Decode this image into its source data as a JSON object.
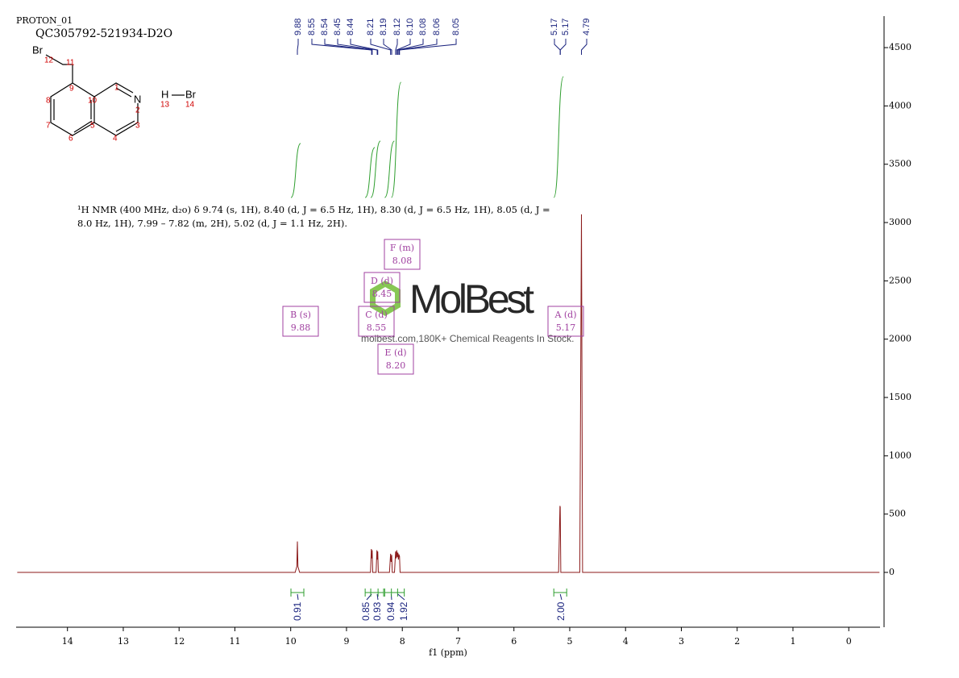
{
  "header": {
    "run": "PROTON_01",
    "sample": "QC305792-521934-D2O"
  },
  "structure_labels": {
    "br_a": "Br",
    "n12": "12",
    "n11": "11",
    "n9": "9",
    "n1": "1",
    "n8": "8",
    "n10": "10",
    "n_atom": "N",
    "n2": "2",
    "n7": "7",
    "n3": "3",
    "n6": "6",
    "n5": "5",
    "n4": "4",
    "h": "H",
    "br_b": "Br",
    "n13": "13",
    "n14": "14"
  },
  "nmr_text": [
    "¹H NMR (400 MHz, d₂o) δ 9.74 (s, 1H), 8.40 (d, J = 6.5 Hz, 1H), 8.30 (d, J = 6.5 Hz, 1H), 8.05 (d, J =",
    "8.0 Hz, 1H), 7.99 – 7.82 (m, 2H), 5.02 (d, J = 1.1 Hz, 2H)."
  ],
  "watermark": {
    "brand": "MolBest",
    "tagline": "molbest.com,180K+ Chemical Reagents In Stock."
  },
  "multiplets": [
    {
      "label": "F (m)",
      "shift": "8.08"
    },
    {
      "label": "D (d)",
      "shift": "8.45"
    },
    {
      "label": "B (s)",
      "shift": "9.88"
    },
    {
      "label": "C (d)",
      "shift": "8.55"
    },
    {
      "label": "A (d)",
      "shift": "5.17"
    },
    {
      "label": "E (d)",
      "shift": "8.20"
    }
  ],
  "chart_data": {
    "type": "line",
    "x_label": "f1 (ppm)",
    "color": "#8b1a1a",
    "x": [
      14.9,
      9.92,
      9.89,
      9.88,
      9.87,
      9.84,
      8.57,
      8.555,
      8.547,
      8.54,
      8.53,
      8.47,
      8.455,
      8.447,
      8.44,
      8.43,
      8.23,
      8.21,
      8.2,
      8.19,
      8.18,
      8.14,
      8.12,
      8.11,
      8.1,
      8.09,
      8.08,
      8.07,
      8.06,
      8.05,
      8.04,
      5.2,
      5.175,
      5.17,
      5.16,
      4.82,
      4.79,
      4.77,
      -0.55
    ],
    "values": [
      0,
      0,
      50,
      265,
      50,
      0,
      0,
      200,
      120,
      190,
      0,
      0,
      190,
      110,
      180,
      0,
      0,
      160,
      90,
      150,
      0,
      0,
      180,
      120,
      190,
      130,
      170,
      110,
      150,
      140,
      0,
      0,
      570,
      560,
      0,
      0,
      3070,
      0,
      0
    ],
    "xlim": [
      14.92,
      -0.56
    ],
    "xticks": [
      14,
      13,
      12,
      11,
      10,
      9,
      8,
      7,
      6,
      5,
      4,
      3,
      2,
      1,
      0
    ],
    "ylim": [
      -470,
      4770
    ],
    "yticks": [
      0,
      500,
      1000,
      1500,
      2000,
      2500,
      3000,
      3500,
      4000,
      4500
    ],
    "peaks": [
      {
        "value": 9.88,
        "label": "9.88"
      },
      {
        "value": 8.55,
        "label": "8.55"
      },
      {
        "value": 8.54,
        "label": "8.54"
      },
      {
        "value": 8.45,
        "label": "8.45"
      },
      {
        "value": 8.44,
        "label": "8.44"
      },
      {
        "value": 8.21,
        "label": "8.21"
      },
      {
        "value": 8.19,
        "label": "8.19"
      },
      {
        "value": 8.12,
        "label": "8.12"
      },
      {
        "value": 8.1,
        "label": "8.10"
      },
      {
        "value": 8.08,
        "label": "8.08"
      },
      {
        "value": 8.06,
        "label": "8.06"
      },
      {
        "value": 8.05,
        "label": "8.05"
      },
      {
        "value": 5.17,
        "label": "5.17"
      },
      {
        "value": 5.17,
        "label": "5.17"
      },
      {
        "value": 4.79,
        "label": "4.79"
      }
    ],
    "integrals": [
      {
        "x": 9.88,
        "value": 0.91,
        "label": "0.91"
      },
      {
        "x": 8.55,
        "value": 0.85,
        "label": "0.85"
      },
      {
        "x": 8.45,
        "value": 0.93,
        "label": "0.93"
      },
      {
        "x": 8.2,
        "value": 0.94,
        "label": "0.94"
      },
      {
        "x": 8.08,
        "value": 1.92,
        "label": "1.92"
      },
      {
        "x": 5.17,
        "value": 2,
        "label": "2.00"
      }
    ]
  }
}
